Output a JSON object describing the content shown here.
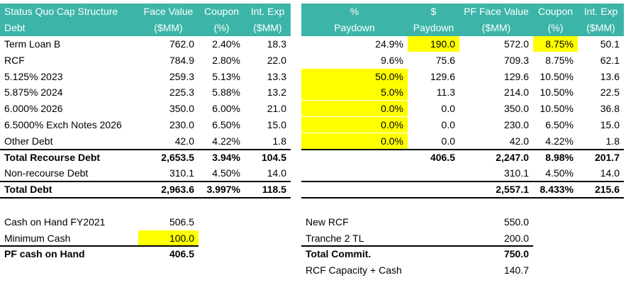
{
  "left": {
    "header": [
      [
        "Status Quo Cap Structure",
        "Face Value",
        "Coupon",
        "Int. Exp"
      ],
      [
        "Debt",
        "($MM)",
        "(%)",
        "($MM)"
      ]
    ],
    "rows": [
      [
        "Term Loan B",
        "762.0",
        "2.40%",
        "18.3"
      ],
      [
        "RCF",
        "784.9",
        "2.80%",
        "22.0"
      ],
      [
        "5.125% 2023",
        "259.3",
        "5.13%",
        "13.3"
      ],
      [
        "5.875% 2024",
        "225.3",
        "5.88%",
        "13.2"
      ],
      [
        "6.000% 2026",
        "350.0",
        "6.00%",
        "21.0"
      ],
      [
        "6.5000% Exch Notes 2026",
        "230.0",
        "6.50%",
        "15.0"
      ],
      [
        "Other Debt",
        "42.0",
        "4.22%",
        "1.8"
      ],
      [
        "Total Recourse Debt",
        "2,653.5",
        "3.94%",
        "104.5"
      ],
      [
        "Non-recourse Debt",
        "310.1",
        "4.50%",
        "14.0"
      ],
      [
        "Total Debt",
        "2,963.6",
        "3.997%",
        "118.5"
      ]
    ]
  },
  "right": {
    "header": [
      [
        "%",
        "$",
        "PF Face Value",
        "Coupon",
        "Int. Exp"
      ],
      [
        "Paydown",
        "Paydown",
        "($MM)",
        "(%)",
        "($MM)"
      ]
    ],
    "rows": [
      [
        "24.9%",
        "190.0",
        "572.0",
        "8.75%",
        "50.1"
      ],
      [
        "9.6%",
        "75.6",
        "709.3",
        "8.75%",
        "62.1"
      ],
      [
        "50.0%",
        "129.6",
        "129.6",
        "10.50%",
        "13.6"
      ],
      [
        "5.0%",
        "11.3",
        "214.0",
        "10.50%",
        "22.5"
      ],
      [
        "0.0%",
        "0.0",
        "350.0",
        "10.50%",
        "36.8"
      ],
      [
        "0.0%",
        "0.0",
        "230.0",
        "6.50%",
        "15.0"
      ],
      [
        "0.0%",
        "0.0",
        "42.0",
        "4.22%",
        "1.8"
      ],
      [
        null,
        "406.5",
        "2,247.0",
        "8.98%",
        "201.7"
      ],
      [
        null,
        null,
        "310.1",
        "4.50%",
        "14.0"
      ],
      [
        null,
        null,
        "2,557.1",
        "8.433%",
        "215.6"
      ]
    ]
  },
  "cash": [
    [
      "Cash on Hand FY2021",
      "506.5"
    ],
    [
      "Minimum Cash",
      "100.0"
    ],
    [
      "PF cash on Hand",
      "406.5"
    ]
  ],
  "commitments": [
    [
      "New RCF",
      "550.0"
    ],
    [
      "Tranche 2 TL",
      "200.0"
    ],
    [
      "Total Commit.",
      "750.0"
    ],
    [
      "RCF Capacity + Cash",
      "140.7"
    ]
  ]
}
